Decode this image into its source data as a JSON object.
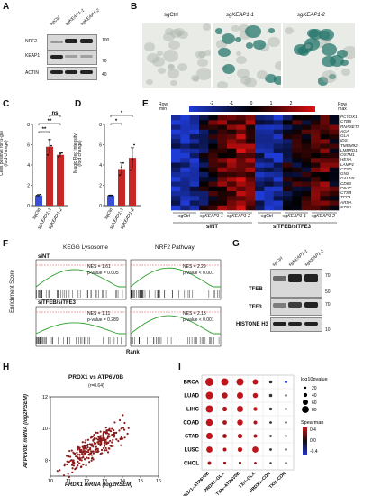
{
  "panels": {
    "A": "A",
    "B": "B",
    "C": "C",
    "D": "D",
    "E": "E",
    "F": "F",
    "G": "G",
    "H": "H",
    "I": "I"
  },
  "panelA": {
    "lanes": [
      "sgCtrl",
      "sgKEAP1-1",
      "sgKEAP1-2"
    ],
    "rows": [
      "NRF2",
      "KEAP1",
      "ACTIN"
    ],
    "markers": [
      "100",
      "70",
      "40"
    ]
  },
  "panelB": {
    "titles": [
      "sgCtrl",
      "sgKEAP1-1",
      "sgKEAP1-2"
    ]
  },
  "panelC": {
    "chart_data": {
      "type": "bar",
      "categories": [
        "sgCtrl",
        "sgKEAP1-1",
        "sgKEAP1-2"
      ],
      "values": [
        1.0,
        5.8,
        5.0
      ],
      "errors": [
        0.1,
        0.7,
        0.2
      ],
      "points": [
        [
          1.0,
          1.0,
          1.1
        ],
        [
          5.0,
          6.5,
          5.9
        ],
        [
          4.8,
          5.1,
          5.2
        ]
      ],
      "ylabel": "Cells positive for ß-gal\n(fold change)",
      "ylim": [
        0,
        8
      ],
      "yticks": [
        "0",
        "2",
        "4",
        "6",
        "8"
      ],
      "significance": [
        {
          "from": 0,
          "to": 1,
          "label": "**"
        },
        {
          "from": 0,
          "to": 2,
          "label": "**"
        },
        {
          "from": 1,
          "to": 2,
          "label": "ns"
        }
      ],
      "colors": [
        "#3a4fd8",
        "#c62828",
        "#c62828"
      ]
    }
  },
  "panelD": {
    "chart_data": {
      "type": "bar",
      "categories": [
        "sgCtrl",
        "sgKEAP1-1",
        "sgKEAP1-2"
      ],
      "values": [
        1.0,
        3.6,
        4.7
      ],
      "errors": [
        0.05,
        0.6,
        1.0
      ],
      "points": [
        [
          1.0,
          1.0,
          1.0
        ],
        [
          3.0,
          3.8,
          4.2
        ],
        [
          3.5,
          4.6,
          6.0
        ]
      ],
      "ylabel": "Magic Red intensity\n(fold change)",
      "ylim": [
        0,
        8
      ],
      "yticks": [
        "0",
        "2",
        "4",
        "6",
        "8"
      ],
      "significance": [
        {
          "from": 0,
          "to": 1,
          "label": "*"
        },
        {
          "from": 0,
          "to": 2,
          "label": "*"
        }
      ],
      "colors": [
        "#3a4fd8",
        "#c62828",
        "#c62828"
      ]
    }
  },
  "panelE": {
    "legend": {
      "title": "Row",
      "min": "min",
      "max": "max",
      "ticks": [
        "-2",
        "-1",
        "0",
        "1",
        "2"
      ]
    },
    "genes": [
      "PCYOX1",
      "CTBS",
      "RNASET2",
      "AGA",
      "GLA",
      "IDS",
      "TMEM92",
      "LMBRD1",
      "OSTM1",
      "HEXA",
      "LAMP1",
      "CTSD",
      "GNS",
      "GALNS",
      "CD63",
      "PSAP",
      "CTSB",
      "TPP1",
      "ARSA",
      "CTSA"
    ],
    "groups": [
      "sgCtrl",
      "sgKEAP1-1",
      "sgKEAP1-2",
      "sgCtrl",
      "sgKEAP1-1",
      "sgKEAP1-2"
    ],
    "conditions": [
      "siNT",
      "siTFEB/siTFE3"
    ]
  },
  "panelF": {
    "titles": [
      "KEGG Lysosome",
      "NRF2 Pathway"
    ],
    "rows": [
      "siNT",
      "siTFEB/siTFE3"
    ],
    "stats": [
      {
        "nes": "NES = 1.61",
        "p": "p-value = 0.005"
      },
      {
        "nes": "NES = 2.29",
        "p": "p-value < 0.001"
      },
      {
        "nes": "NES = 1.11",
        "p": "p-value = 0.289"
      },
      {
        "nes": "NES = 2.13",
        "p": "p-value < 0.001"
      }
    ],
    "ylabel": "Enrichment Score",
    "xlabel": "Rank"
  },
  "panelG": {
    "lanes": [
      "sgCtrl",
      "sgKEAP1-1",
      "sgKEAP1-2"
    ],
    "rows": [
      "TFEB",
      "TFE3",
      "HISTONE H3"
    ],
    "markers": [
      "70",
      "50",
      "70",
      "10"
    ]
  },
  "panelH": {
    "chart_data": {
      "type": "scatter",
      "title": "PRDX1 vs ATP6V0B",
      "subtitle": "(r=0.64)",
      "xlabel": "PRDX1 mRNA (log2RSEM)",
      "ylabel": "ATP6V0B mRNA (log2RSEM)",
      "xlim": [
        10,
        16
      ],
      "ylim": [
        7,
        12
      ],
      "xticks": [
        "10",
        "11",
        "12",
        "13",
        "14",
        "15",
        "16"
      ],
      "yticks": [
        "8",
        "10",
        "12"
      ],
      "color": "#8b1a1a"
    }
  },
  "panelI": {
    "chart_data": {
      "type": "bubble",
      "rows": [
        "BRCA",
        "LUAD",
        "LIHC",
        "COAD",
        "STAD",
        "LUSC",
        "CHOL"
      ],
      "cols": [
        "PRDX1–ATP6V0B",
        "PRDX1–GLA",
        "TXN–ATP6V0B",
        "TXN–GLA",
        "PRDX1–CON",
        "TXN–CON"
      ],
      "legend_size_title": "log10pvalue",
      "legend_sizes": [
        "20",
        "40",
        "60",
        "80"
      ],
      "legend_color_title": "Spearman",
      "legend_color_ticks": [
        "0.4",
        "0.0",
        "-0.4"
      ]
    }
  }
}
